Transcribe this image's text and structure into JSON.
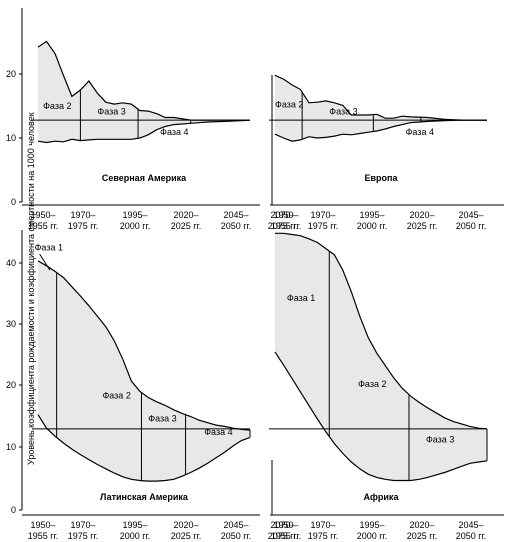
{
  "y_axis_label": "Уровень коэффициента рождаемости и коэффициента смертности на 1000 человек",
  "y_ticks": [
    "0",
    "10",
    "20",
    "30",
    "40"
  ],
  "x_ticks": [
    [
      "1950–",
      "1955 гг."
    ],
    [
      "1970–",
      "1975 гг."
    ],
    [
      "1995–",
      "2000 гг."
    ],
    [
      "2020–",
      "2025 гг."
    ],
    [
      "2045–",
      "2050 гг."
    ],
    [
      "2070–",
      "2075 гг."
    ]
  ],
  "chart_data": [
    {
      "type": "area",
      "title": "Северная Америка",
      "x": [
        1950,
        1955,
        1960,
        1965,
        1970,
        1975,
        1980,
        1985,
        1990,
        1995,
        2000,
        2005,
        2010,
        2015,
        2020,
        2025,
        2030,
        2040,
        2050,
        2060,
        2070,
        2075
      ],
      "series": [
        {
          "kind": "birth",
          "values": [
            24.2,
            25.1,
            23.2,
            19.8,
            16.5,
            17.5,
            18.9,
            17.0,
            15.6,
            15.3,
            15.5,
            15.3,
            14.3,
            14.2,
            13.8,
            13.2,
            13.2,
            12.8,
            12.8,
            12.8,
            12.8,
            12.8
          ]
        },
        {
          "kind": "death",
          "values": [
            9.5,
            9.3,
            9.5,
            9.4,
            9.8,
            9.6,
            9.7,
            9.8,
            9.8,
            9.8,
            9.8,
            9.8,
            10.0,
            10.5,
            11.3,
            11.8,
            12.1,
            12.3,
            12.5,
            12.6,
            12.7,
            12.8
          ]
        }
      ],
      "crossover": 12.8,
      "phase_bounds": [
        1975,
        2009,
        2040
      ],
      "phases": [
        {
          "label": "Фаза 2",
          "x": 1953,
          "y": 14.5
        },
        {
          "label": "Фаза 3",
          "x": 1985,
          "y": 13.7
        },
        {
          "label": "Фаза 4",
          "x": 2022,
          "y": 10.5
        }
      ],
      "xlim": [
        1948,
        2075
      ],
      "ylim": [
        0,
        27
      ]
    },
    {
      "type": "area",
      "title": "Европа",
      "x": [
        1950,
        1955,
        1960,
        1965,
        1970,
        1975,
        1980,
        1985,
        1990,
        1995,
        2000,
        2005,
        2010,
        2015,
        2020,
        2025,
        2030,
        2040,
        2050,
        2060,
        2070,
        2075
      ],
      "series": [
        {
          "kind": "birth",
          "values": [
            19.8,
            19.2,
            18.3,
            17.6,
            15.5,
            15.6,
            15.8,
            15.5,
            15.1,
            13.6,
            13.6,
            13.6,
            13.7,
            13.1,
            13.1,
            13.4,
            13.3,
            13.2,
            12.9,
            12.8,
            12.8,
            12.8
          ]
        },
        {
          "kind": "death",
          "values": [
            10.6,
            10.0,
            9.5,
            9.7,
            10.2,
            10.0,
            10.1,
            10.3,
            10.6,
            10.5,
            10.7,
            10.9,
            11.1,
            11.4,
            11.8,
            12.1,
            12.4,
            12.6,
            12.7,
            12.8,
            12.8,
            12.8
          ]
        }
      ],
      "crossover": 12.8,
      "phase_bounds": [
        1966,
        2008,
        2036
      ],
      "phases": [
        {
          "label": "Фаза 2",
          "x": 1950,
          "y": 14.8
        },
        {
          "label": "Фаза 3",
          "x": 1982,
          "y": 13.7
        },
        {
          "label": "Фаза 4",
          "x": 2027,
          "y": 10.5
        }
      ],
      "xlim": [
        1948,
        2075
      ],
      "ylim": [
        0,
        27
      ]
    },
    {
      "type": "area",
      "title": "Латинская Америка",
      "x": [
        1950,
        1955,
        1960,
        1965,
        1970,
        1975,
        1980,
        1985,
        1990,
        1995,
        2000,
        2005,
        2010,
        2015,
        2020,
        2025,
        2030,
        2035,
        2040,
        2045,
        2050,
        2055,
        2060,
        2065,
        2070,
        2075
      ],
      "series": [
        {
          "kind": "birth",
          "values": [
            40.5,
            39.7,
            38.8,
            37.8,
            36.3,
            34.8,
            33.2,
            31.5,
            29.8,
            27.5,
            24.5,
            21.0,
            19.3,
            18.3,
            17.6,
            17.0,
            16.3,
            15.7,
            15.2,
            14.6,
            14.2,
            13.8,
            13.6,
            13.3,
            13.1,
            13.0
          ]
        },
        {
          "kind": "death",
          "values": [
            15.5,
            13.3,
            12.0,
            10.9,
            9.9,
            9.0,
            8.2,
            7.4,
            6.7,
            6.0,
            5.4,
            5.0,
            4.8,
            4.7,
            4.7,
            4.8,
            5.0,
            5.5,
            6.1,
            6.8,
            7.6,
            8.5,
            9.4,
            10.4,
            11.3,
            11.8
          ]
        }
      ],
      "crossover": 13.2,
      "phase_bounds": [
        1961,
        2011,
        2037
      ],
      "phases": [
        {
          "label": "Фаза 1",
          "x": 1948,
          "y": 42.2
        },
        {
          "label": "Фаза 2",
          "x": 1988,
          "y": 18.1
        },
        {
          "label": "Фаза 3",
          "x": 2015,
          "y": 14.4
        },
        {
          "label": "Фаза 4",
          "x": 2048,
          "y": 12.2
        }
      ],
      "xlim": [
        1948,
        2075
      ],
      "ylim": [
        0,
        45
      ]
    },
    {
      "type": "area",
      "title": "Африка",
      "x": [
        1950,
        1955,
        1960,
        1965,
        1970,
        1975,
        1980,
        1985,
        1990,
        1995,
        2000,
        2005,
        2010,
        2015,
        2020,
        2025,
        2030,
        2035,
        2040,
        2045,
        2050,
        2055,
        2060,
        2065,
        2070,
        2075
      ],
      "series": [
        {
          "kind": "birth",
          "values": [
            45.0,
            45.0,
            44.8,
            44.6,
            44.1,
            43.5,
            42.5,
            41.5,
            39.0,
            35.5,
            31.5,
            28.0,
            25.5,
            23.5,
            21.5,
            19.8,
            18.5,
            17.5,
            16.6,
            15.8,
            15.0,
            14.4,
            14.0,
            13.6,
            13.3,
            13.2
          ]
        },
        {
          "kind": "death",
          "values": [
            25.7,
            23.6,
            21.4,
            19.2,
            17.0,
            14.8,
            12.7,
            10.8,
            9.2,
            7.8,
            6.7,
            5.8,
            5.3,
            5.0,
            4.8,
            4.8,
            4.8,
            5.0,
            5.3,
            5.7,
            6.1,
            6.6,
            7.1,
            7.6,
            7.8,
            8.0
          ]
        }
      ],
      "crossover": 13.2,
      "phase_bounds": [
        1982,
        2029
      ],
      "phases": [
        {
          "label": "Фаза 1",
          "x": 1957,
          "y": 34.0
        },
        {
          "label": "Фаза 2",
          "x": 1999,
          "y": 20.0
        },
        {
          "label": "Фаза 3",
          "x": 2039,
          "y": 11.0
        }
      ],
      "xlim": [
        1948,
        2075
      ],
      "ylim": [
        0,
        45
      ]
    }
  ]
}
